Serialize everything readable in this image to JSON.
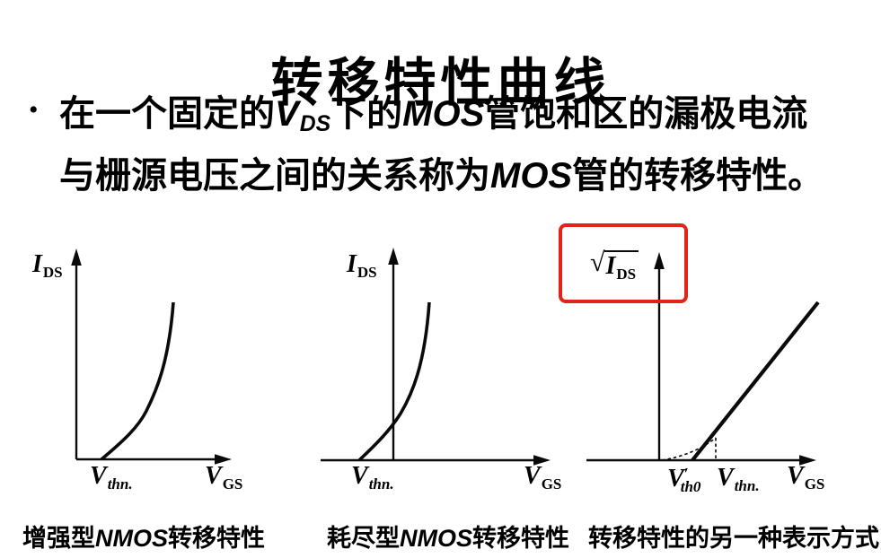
{
  "slide": {
    "title": "转移特性曲线",
    "bullet_marker": "•",
    "bullet_lines": [
      [
        {
          "text": "在一个固定的",
          "kind": "cn"
        },
        {
          "text": "V",
          "kind": "var",
          "sub": "DS"
        },
        {
          "text": "下的",
          "kind": "cn"
        },
        {
          "text": "MOS",
          "kind": "var"
        },
        {
          "text": "管饱和区的漏极电流",
          "kind": "cn"
        }
      ],
      [
        {
          "text": "与栅源电压之间的关系称为",
          "kind": "cn"
        },
        {
          "text": "MOS",
          "kind": "var"
        },
        {
          "text": "管的转移特性。",
          "kind": "cn"
        }
      ]
    ],
    "highlight_color": "#e02417",
    "ink_color": "#0a0a0a"
  },
  "charts": [
    {
      "id": "enhancement-nmos",
      "type": "line",
      "curve_shape": "square-law curve rising from positive threshold on x-axis",
      "y_axis_label": {
        "main": "I",
        "sub": "DS"
      },
      "x_axis_label": {
        "main": "V",
        "sub": "GS"
      },
      "threshold_label": {
        "main": "V",
        "sub": "thn.",
        "sub_italic": true
      },
      "caption": [
        {
          "text": "增强型",
          "kind": "cn"
        },
        {
          "text": "NMOS",
          "kind": "var"
        },
        {
          "text": "转移特性",
          "kind": "cn"
        }
      ]
    },
    {
      "id": "depletion-nmos",
      "type": "line",
      "curve_shape": "square-law curve rising from negative threshold, crossing the y-axis",
      "y_axis_label": {
        "main": "I",
        "sub": "DS"
      },
      "x_axis_label": {
        "main": "V",
        "sub": "GS"
      },
      "threshold_label": {
        "main": "V",
        "sub": "thn.",
        "sub_italic": true
      },
      "caption": [
        {
          "text": "耗尽型",
          "kind": "cn"
        },
        {
          "text": "NMOS",
          "kind": "var"
        },
        {
          "text": "转移特性",
          "kind": "cn"
        }
      ]
    },
    {
      "id": "sqrt-representation",
      "type": "line",
      "curve_shape": "straight line from V'th0 with dotted sub-threshold curve joining at Vthn",
      "highlighted_y_label": true,
      "y_axis_label": {
        "radical": true,
        "main": "I",
        "sub": "DS"
      },
      "x_axis_label": {
        "main": "V",
        "sub": "GS"
      },
      "threshold_label_1": {
        "main": "V",
        "prime": "′",
        "sub": "th0",
        "sub_italic": true
      },
      "threshold_label_2": {
        "main": "V",
        "sub": "thn.",
        "sub_italic": true
      },
      "caption": [
        {
          "text": "转移特性的另一种表示方式",
          "kind": "cn"
        }
      ]
    }
  ]
}
